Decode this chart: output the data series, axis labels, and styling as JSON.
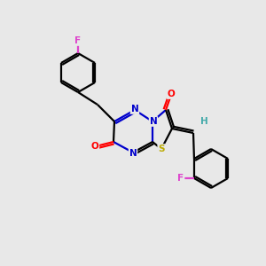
{
  "bg_color": "#e8e8e8",
  "atom_colors": {
    "C": "#000000",
    "N": "#0000cc",
    "O": "#ff0000",
    "S": "#bbaa00",
    "F_pink": "#dd44cc",
    "F_pink2": "#cc44aa",
    "H": "#44aaaa"
  }
}
